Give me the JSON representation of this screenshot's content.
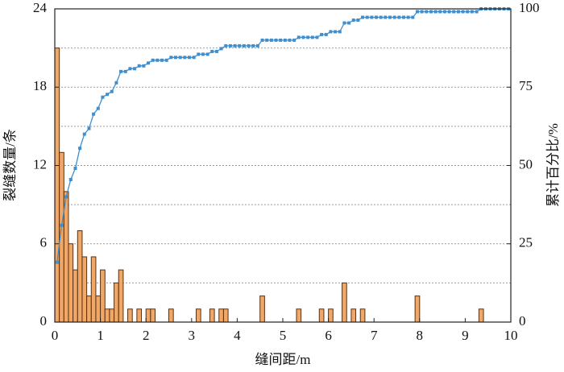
{
  "chart_data": {
    "type": "histogram",
    "xlabel": "缝间距/m",
    "ylabel": "裂缝数量/条",
    "y2label": "累计百分比/%",
    "bar_color": "#f0a868",
    "bar_edge_color": "#5a3010",
    "bins": [
      0,
      0.1,
      0.2,
      0.3,
      0.4,
      0.5,
      0.6,
      0.7,
      0.8,
      0.9,
      1,
      1.1,
      1.2,
      1.3,
      1.4,
      1.5,
      1.6,
      1.7,
      1.8,
      1.9,
      2,
      2.1,
      2.2,
      2.3,
      2.4,
      2.5,
      2.6,
      2.7,
      2.8,
      2.9,
      3,
      3.1,
      3.2,
      3.3,
      3.4,
      3.5,
      3.6,
      3.7,
      3.8,
      3.9,
      4,
      4.1,
      4.2,
      4.3,
      4.4,
      4.5,
      4.6,
      4.7,
      4.8,
      4.9,
      5,
      5.1,
      5.2,
      5.3,
      5.4,
      5.5,
      5.6,
      5.7,
      5.8,
      5.9,
      6,
      6.1,
      6.2,
      6.3,
      6.4,
      6.5,
      6.6,
      6.7,
      6.8,
      6.9,
      7,
      7.1,
      7.2,
      7.3,
      7.4,
      7.5,
      7.6,
      7.7,
      7.8,
      7.9,
      8,
      8.1,
      8.2,
      8.3,
      8.4,
      8.5,
      8.6,
      8.7,
      8.8,
      8.9,
      9,
      9.1,
      9.2,
      9.3,
      9.4,
      9.5,
      9.6,
      9.7,
      9.8,
      9.9,
      10
    ],
    "counts": [
      21,
      13,
      10,
      6,
      4,
      7,
      5,
      2,
      5,
      2,
      4,
      1,
      1,
      3,
      4,
      0,
      1,
      0,
      1,
      0,
      1,
      1,
      0,
      0,
      0,
      1,
      0,
      0,
      0,
      0,
      0,
      1,
      0,
      0,
      1,
      0,
      1,
      1,
      0,
      0,
      0,
      0,
      0,
      0,
      0,
      2,
      0,
      0,
      0,
      0,
      0,
      0,
      0,
      1,
      0,
      0,
      0,
      0,
      1,
      0,
      1,
      0,
      0,
      3,
      0,
      1,
      0,
      1,
      0,
      0,
      0,
      0,
      0,
      0,
      0,
      0,
      0,
      0,
      0,
      2,
      0,
      0,
      0,
      0,
      0,
      0,
      0,
      0,
      0,
      0,
      0,
      0,
      0,
      1,
      0,
      0,
      0,
      0,
      0,
      0
    ],
    "cumulative": {
      "color": "#3f8fcf",
      "axis": "y2",
      "x": [
        0.05,
        0.15,
        0.25,
        0.35,
        0.45,
        0.55,
        0.65,
        0.75,
        0.85,
        0.95,
        1.05,
        1.15,
        1.25,
        1.35,
        1.45,
        1.55,
        1.65,
        1.75,
        1.85,
        1.95,
        2.05,
        2.15,
        2.25,
        2.35,
        2.45,
        2.55,
        2.65,
        2.75,
        2.85,
        2.95,
        3.05,
        3.15,
        3.25,
        3.35,
        3.45,
        3.55,
        3.65,
        3.75,
        3.85,
        3.95,
        4.05,
        4.15,
        4.25,
        4.35,
        4.45,
        4.55,
        4.65,
        4.75,
        4.85,
        4.95,
        5.05,
        5.15,
        5.25,
        5.35,
        5.45,
        5.55,
        5.65,
        5.75,
        5.85,
        5.95,
        6.05,
        6.15,
        6.25,
        6.35,
        6.45,
        6.55,
        6.65,
        6.75,
        6.85,
        6.95,
        7.05,
        7.15,
        7.25,
        7.35,
        7.45,
        7.55,
        7.65,
        7.75,
        7.85,
        7.95,
        8.05,
        8.15,
        8.25,
        8.35,
        8.45,
        8.55,
        8.65,
        8.75,
        8.85,
        8.95,
        9.05,
        9.15,
        9.25,
        9.35,
        9.45,
        9.55,
        9.65,
        9.75,
        9.85,
        9.95
      ],
      "values": [
        19.1,
        30.9,
        40.0,
        45.5,
        49.1,
        55.5,
        60.0,
        61.8,
        66.4,
        68.2,
        71.8,
        72.7,
        73.6,
        76.4,
        80.0,
        80.0,
        80.9,
        80.9,
        81.8,
        81.8,
        82.7,
        83.6,
        83.6,
        83.6,
        83.6,
        84.5,
        84.5,
        84.5,
        84.5,
        84.5,
        84.5,
        85.5,
        85.5,
        85.5,
        86.4,
        86.4,
        87.3,
        88.2,
        88.2,
        88.2,
        88.2,
        88.2,
        88.2,
        88.2,
        88.2,
        90.0,
        90.0,
        90.0,
        90.0,
        90.0,
        90.0,
        90.0,
        90.0,
        90.9,
        90.9,
        90.9,
        90.9,
        90.9,
        91.8,
        91.8,
        92.7,
        92.7,
        92.7,
        95.5,
        95.5,
        96.4,
        96.4,
        97.3,
        97.3,
        97.3,
        97.3,
        97.3,
        97.3,
        97.3,
        97.3,
        97.3,
        97.3,
        97.3,
        97.3,
        99.1,
        99.1,
        99.1,
        99.1,
        99.1,
        99.1,
        99.1,
        99.1,
        99.1,
        99.1,
        99.1,
        99.1,
        99.1,
        99.1,
        100,
        100,
        100,
        100,
        100,
        100,
        100
      ]
    },
    "xlim": [
      0,
      10
    ],
    "xticks": [
      0,
      1,
      2,
      3,
      4,
      5,
      6,
      7,
      8,
      9,
      10
    ],
    "ylim": [
      0,
      24
    ],
    "yticks": [
      0,
      6,
      12,
      18,
      24
    ],
    "y2lim": [
      0,
      100
    ],
    "y2ticks": [
      0,
      25,
      50,
      75,
      100
    ],
    "grid": true,
    "ygrid": [
      3,
      6,
      9,
      12,
      15,
      18,
      21
    ]
  }
}
